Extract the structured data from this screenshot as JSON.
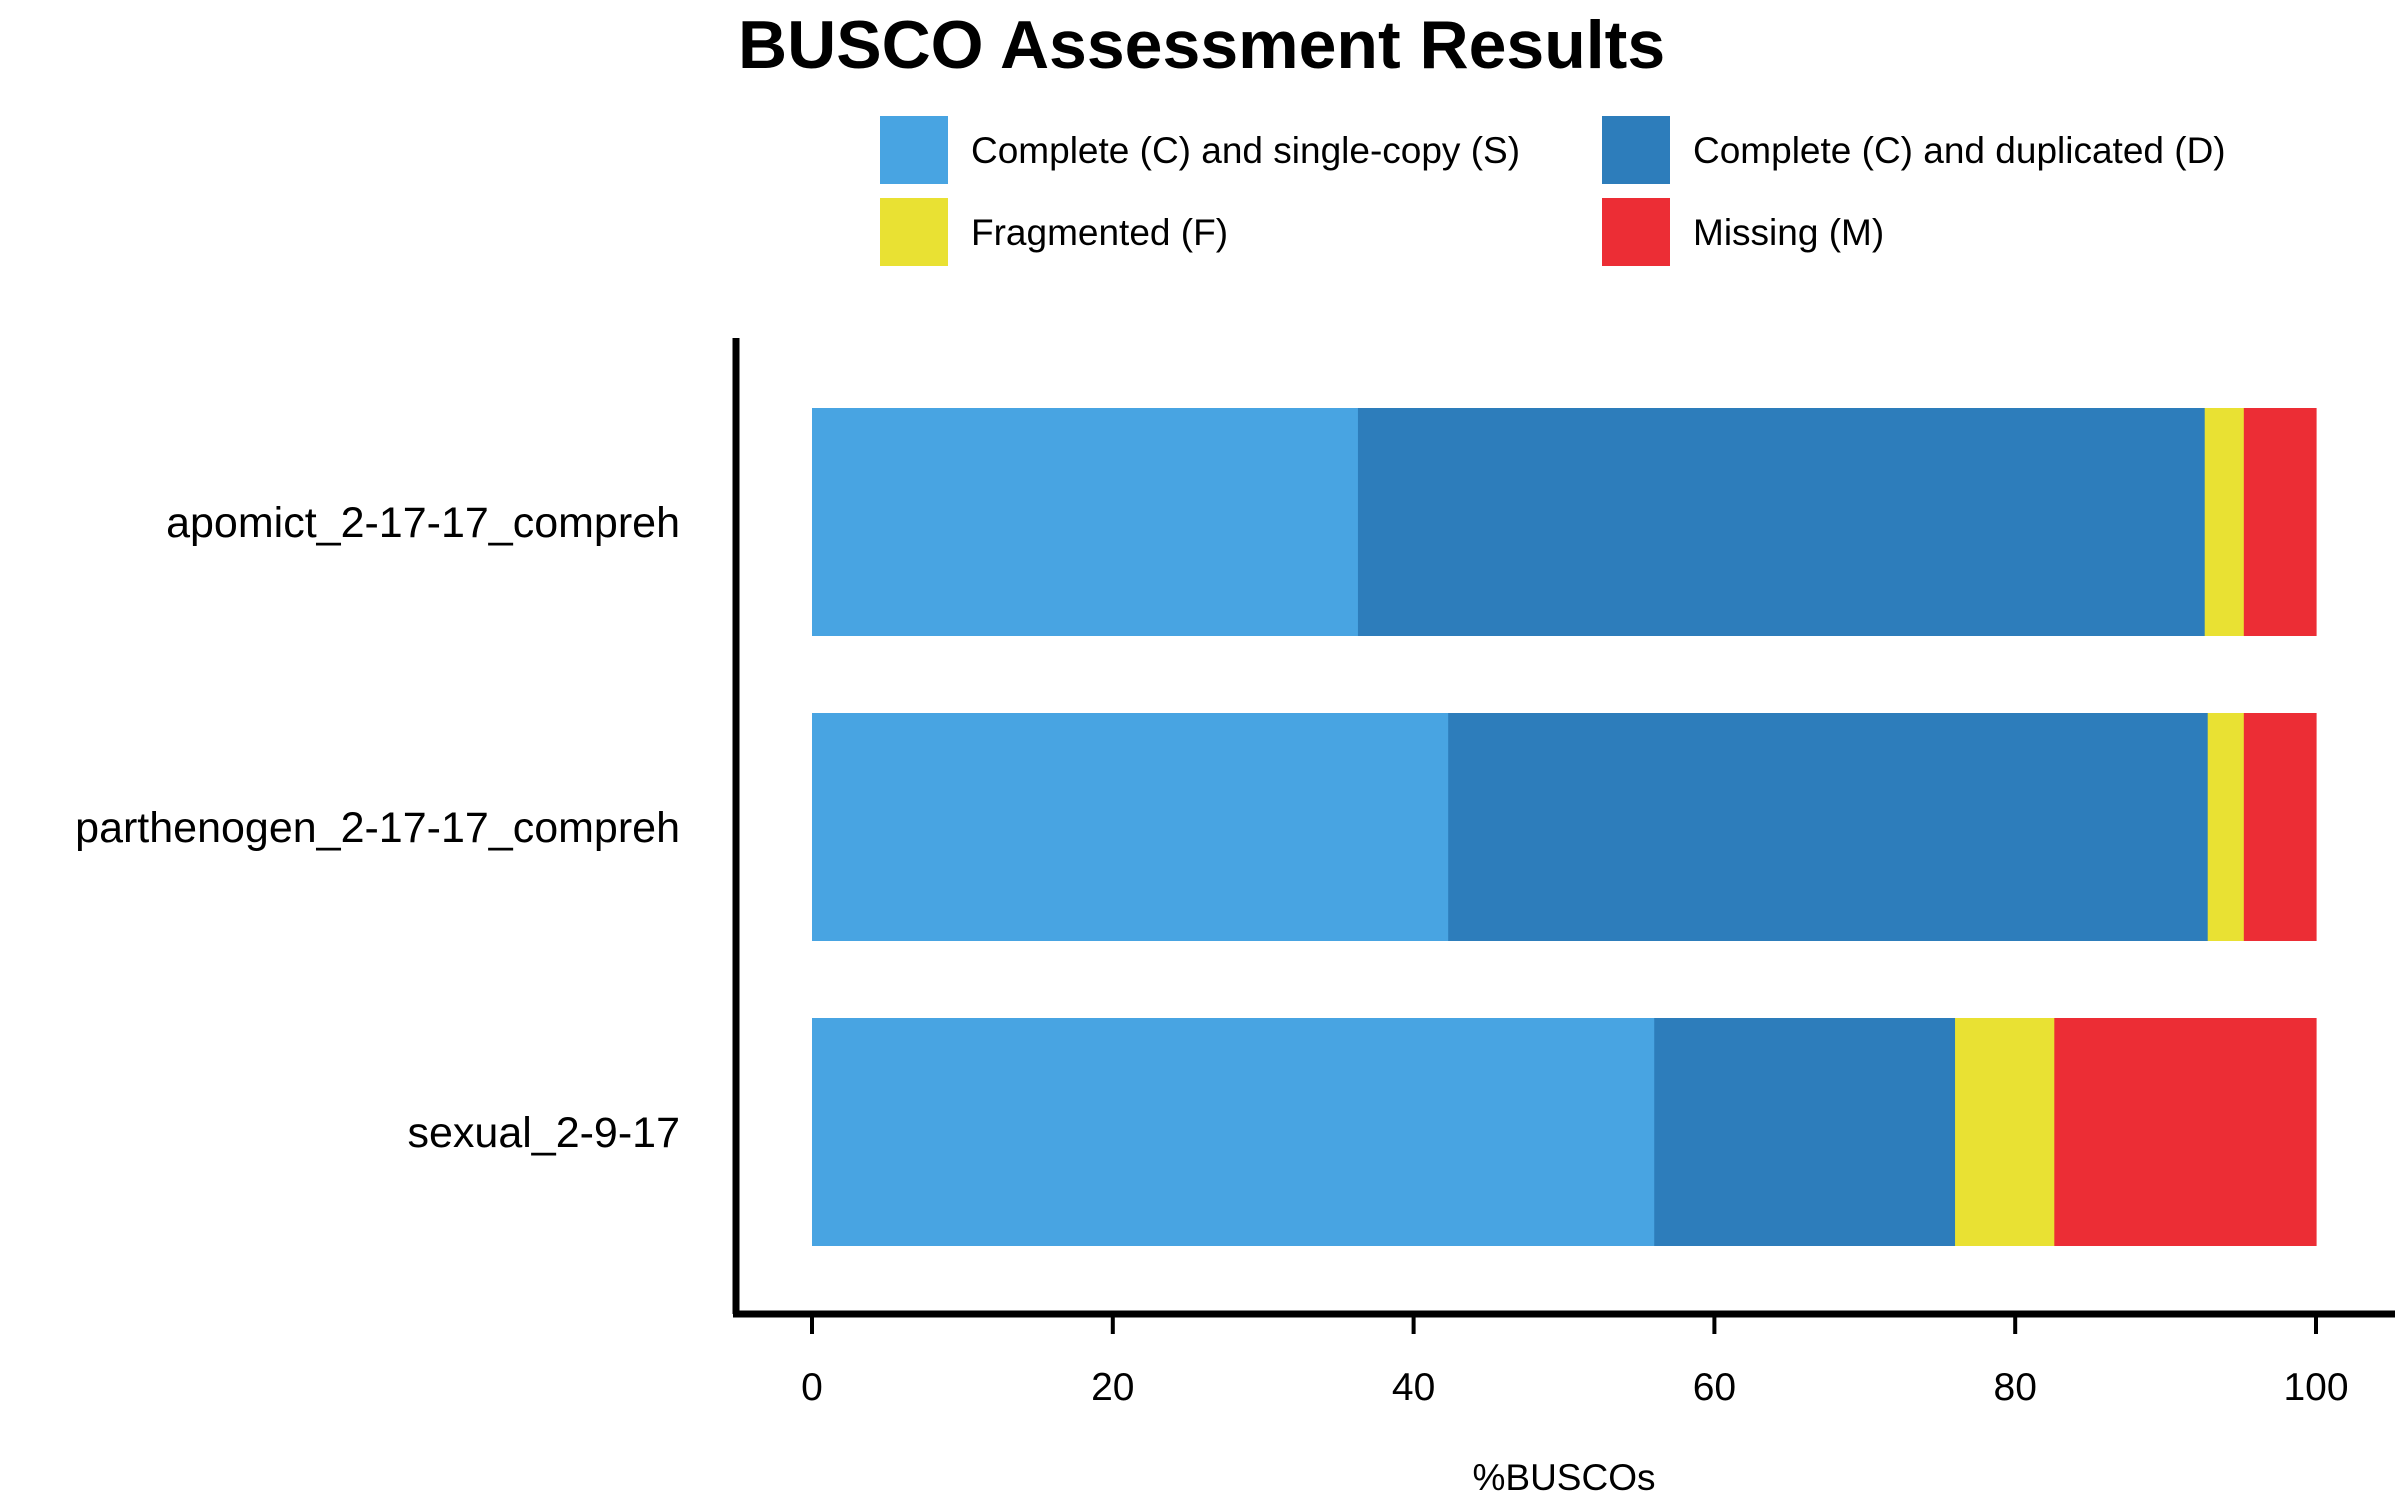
{
  "chart_data": {
    "type": "bar",
    "orientation": "horizontal",
    "stacked": true,
    "title": "BUSCO Assessment Results",
    "xlabel": "%BUSCOs",
    "ylabel": "",
    "xlim": [
      0,
      100
    ],
    "xticks": [
      0,
      20,
      40,
      60,
      80,
      100
    ],
    "grid": false,
    "legend_position": "top",
    "categories": [
      "apomict_2-17-17_compreh",
      "parthenogen_2-17-17_compreh",
      "sexual_2-9-17"
    ],
    "series": [
      {
        "name": "Complete (C) and single-copy (S)",
        "color": "#48A4E2",
        "values": [
          36.3,
          42.3,
          56.0
        ]
      },
      {
        "name": "Complete (C) and duplicated (D)",
        "color": "#2D7DBB",
        "values": [
          56.3,
          50.5,
          20.0
        ]
      },
      {
        "name": "Fragmented (F)",
        "color": "#E9E133",
        "values": [
          2.6,
          2.4,
          6.6
        ]
      },
      {
        "name": "Missing (M)",
        "color": "#EC2D35",
        "values": [
          4.8,
          4.8,
          17.4
        ]
      }
    ]
  }
}
